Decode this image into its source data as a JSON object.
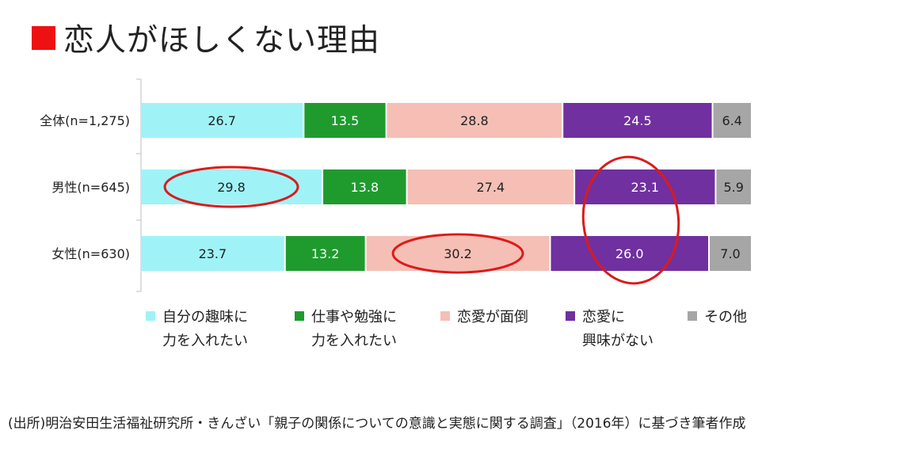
{
  "title": "恋人がほしくない理由",
  "colors": {
    "title_square": "#ee1111",
    "highlight_ellipse": "#dd1a1a"
  },
  "chart_data": {
    "type": "bar",
    "orientation": "horizontal-stacked-100",
    "categories": [
      "全体(n=1,275)",
      "男性(n=645)",
      "女性(n=630)"
    ],
    "series": [
      {
        "name": "自分の趣味に\n力を入れたい",
        "color": "#9ff3f7",
        "values": [
          26.7,
          29.8,
          23.7
        ]
      },
      {
        "name": "仕事や勉強に\n力を入れたい",
        "color": "#1f9b2e",
        "values": [
          13.5,
          13.8,
          13.2
        ]
      },
      {
        "name": "恋愛が面倒",
        "color": "#f5bfb5",
        "values": [
          28.8,
          27.4,
          30.2
        ]
      },
      {
        "name": "恋愛に\n興味がない",
        "color": "#7030a0",
        "values": [
          24.5,
          23.1,
          26.0
        ]
      },
      {
        "name": "その他",
        "color": "#a6a6a6",
        "values": [
          6.4,
          5.9,
          7.0
        ]
      }
    ],
    "data_labels": [
      [
        "26.7",
        "13.5",
        "28.8",
        "24.5",
        "6.4"
      ],
      [
        "29.8",
        "13.8",
        "27.4",
        "23.1",
        "5.9"
      ],
      [
        "23.7",
        "13.2",
        "30.2",
        "26.0",
        "7.0"
      ]
    ],
    "xlim": [
      0,
      100
    ],
    "legend_position": "bottom",
    "annotations": [
      {
        "kind": "ellipse",
        "category": "男性(n=645)",
        "series": "自分の趣味に\n力を入れたい"
      },
      {
        "kind": "ellipse",
        "category": "女性(n=630)",
        "series": "恋愛が面倒"
      },
      {
        "kind": "ellipse",
        "category": "男性(n=645)",
        "series": "恋愛に\n興味がない",
        "spans_to": "女性(n=630)"
      }
    ]
  },
  "source": "(出所)明治安田生活福祉研究所・きんざい「親子の関係についての意識と実態に関する調査」（2016年）に基づき筆者作成"
}
